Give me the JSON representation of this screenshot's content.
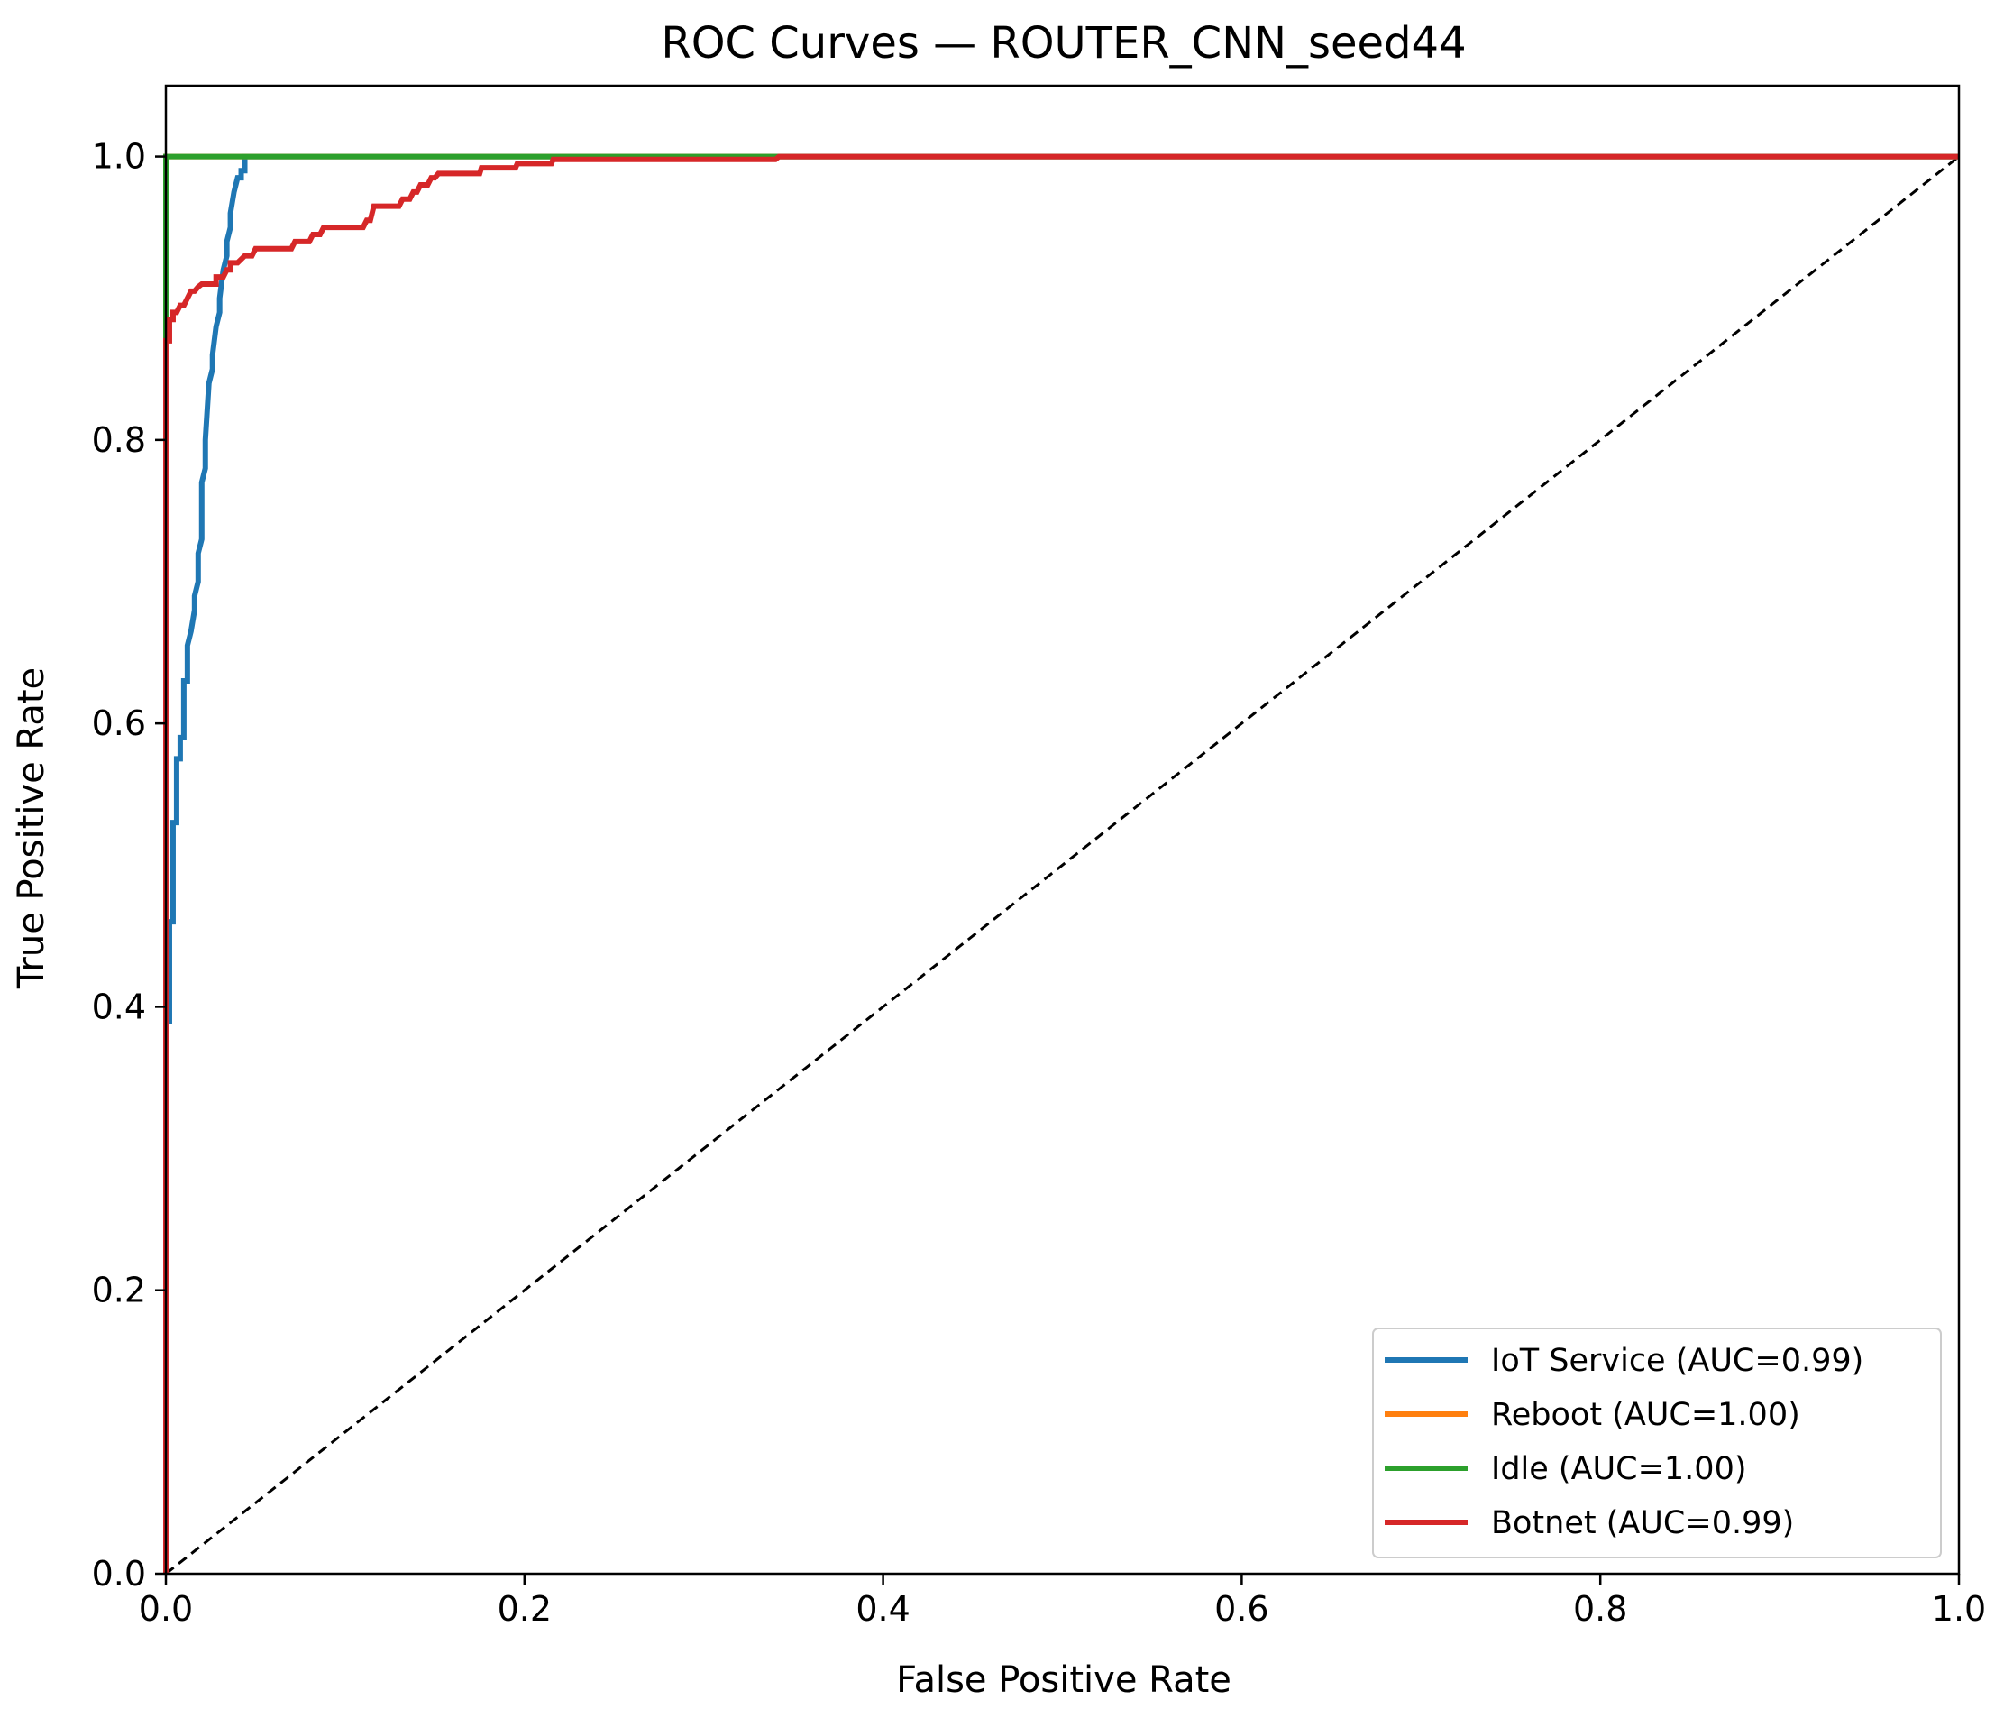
{
  "chart_data": {
    "type": "line",
    "title": "ROC Curves — ROUTER_CNN_seed44",
    "xlabel": "False Positive Rate",
    "ylabel": "True Positive Rate",
    "xlim": [
      0.0,
      1.0
    ],
    "ylim": [
      0.0,
      1.05
    ],
    "xticks": [
      0.0,
      0.2,
      0.4,
      0.6,
      0.8,
      1.0
    ],
    "yticks": [
      0.0,
      0.2,
      0.4,
      0.6,
      0.8,
      1.0
    ],
    "xtick_labels": [
      "0.0",
      "0.2",
      "0.4",
      "0.6",
      "0.8",
      "1.0"
    ],
    "ytick_labels": [
      "0.0",
      "0.2",
      "0.4",
      "0.6",
      "0.8",
      "1.0"
    ],
    "grid": false,
    "legend_position": "lower-right",
    "diagonal": {
      "x": [
        0.0,
        1.0
      ],
      "y": [
        0.0,
        1.0
      ],
      "color": "#000000",
      "style": "dashed"
    },
    "series": [
      {
        "name": "IoT Service (AUC=0.99)",
        "color": "#1f77b4",
        "x": [
          0.0,
          0.0,
          0.002,
          0.002,
          0.004,
          0.004,
          0.006,
          0.006,
          0.008,
          0.008,
          0.01,
          0.01,
          0.012,
          0.012,
          0.014,
          0.016,
          0.016,
          0.018,
          0.018,
          0.02,
          0.02,
          0.022,
          0.022,
          0.024,
          0.026,
          0.026,
          0.028,
          0.03,
          0.03,
          0.032,
          0.034,
          0.034,
          0.036,
          0.036,
          0.038,
          0.04,
          0.042,
          0.042,
          0.044,
          0.044,
          1.0
        ],
        "y": [
          0.0,
          0.39,
          0.39,
          0.46,
          0.46,
          0.53,
          0.53,
          0.575,
          0.575,
          0.59,
          0.59,
          0.63,
          0.63,
          0.655,
          0.665,
          0.68,
          0.69,
          0.7,
          0.72,
          0.73,
          0.77,
          0.78,
          0.8,
          0.84,
          0.85,
          0.86,
          0.88,
          0.89,
          0.9,
          0.92,
          0.93,
          0.94,
          0.95,
          0.96,
          0.975,
          0.985,
          0.985,
          0.99,
          0.99,
          1.0,
          1.0
        ]
      },
      {
        "name": "Reboot (AUC=1.00)",
        "color": "#ff7f0e",
        "x": [
          0.0,
          0.0,
          1.0
        ],
        "y": [
          0.0,
          1.0,
          1.0
        ]
      },
      {
        "name": "Idle (AUC=1.00)",
        "color": "#2ca02c",
        "x": [
          0.0,
          0.0,
          1.0
        ],
        "y": [
          0.0,
          1.0,
          1.0
        ]
      },
      {
        "name": "Botnet (AUC=0.99)",
        "color": "#d62728",
        "x": [
          0.0,
          0.0,
          0.002,
          0.002,
          0.004,
          0.004,
          0.006,
          0.008,
          0.01,
          0.012,
          0.014,
          0.016,
          0.018,
          0.02,
          0.028,
          0.028,
          0.032,
          0.034,
          0.036,
          0.036,
          0.04,
          0.044,
          0.048,
          0.05,
          0.052,
          0.07,
          0.072,
          0.08,
          0.082,
          0.086,
          0.088,
          0.11,
          0.112,
          0.114,
          0.116,
          0.12,
          0.122,
          0.13,
          0.132,
          0.136,
          0.138,
          0.14,
          0.142,
          0.146,
          0.148,
          0.15,
          0.152,
          0.175,
          0.176,
          0.195,
          0.196,
          0.215,
          0.216,
          0.34,
          0.342,
          1.0
        ],
        "y": [
          0.0,
          0.87,
          0.87,
          0.885,
          0.885,
          0.89,
          0.89,
          0.895,
          0.895,
          0.9,
          0.905,
          0.905,
          0.908,
          0.91,
          0.91,
          0.915,
          0.915,
          0.92,
          0.92,
          0.925,
          0.925,
          0.93,
          0.93,
          0.935,
          0.935,
          0.935,
          0.94,
          0.94,
          0.945,
          0.945,
          0.95,
          0.95,
          0.955,
          0.955,
          0.965,
          0.965,
          0.965,
          0.965,
          0.97,
          0.97,
          0.975,
          0.975,
          0.98,
          0.98,
          0.985,
          0.985,
          0.988,
          0.988,
          0.992,
          0.992,
          0.995,
          0.995,
          0.998,
          0.998,
          1.0,
          1.0
        ]
      }
    ]
  }
}
